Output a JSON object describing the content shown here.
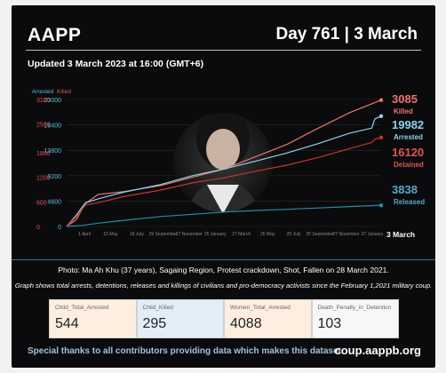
{
  "header": {
    "org": "AAPP",
    "day_date": "Day 761 | 3 March",
    "updated": "Updated 3 March 2023 at 16:00 (GMT+6)"
  },
  "chart_data": {
    "type": "line",
    "y_left": {
      "label": "Arrested",
      "ticks": [
        0,
        4600,
        9200,
        13800,
        18400,
        23000
      ],
      "range": [
        0,
        23000
      ],
      "color": "#5bc0de"
    },
    "y_right": {
      "label": "Killed",
      "ticks": [
        0,
        600,
        1200,
        1800,
        2500,
        3100
      ],
      "range": [
        0,
        3100
      ],
      "color": "#e05555"
    },
    "x_ticks": [
      "1 April",
      "15 May",
      "18 July",
      "29 September",
      "27 November",
      "26 January",
      "27 March",
      "26 May",
      "25 July",
      "25 September",
      "27 November",
      "27 January"
    ],
    "x_end_label": "3 March",
    "series": [
      {
        "name": "Killed",
        "axis": "right",
        "color": "#f07070",
        "final": "3085",
        "points": [
          [
            0,
            0
          ],
          [
            0.03,
            160
          ],
          [
            0.06,
            560
          ],
          [
            0.1,
            780
          ],
          [
            0.18,
            850
          ],
          [
            0.3,
            1000
          ],
          [
            0.4,
            1200
          ],
          [
            0.5,
            1400
          ],
          [
            0.6,
            1700
          ],
          [
            0.7,
            2000
          ],
          [
            0.8,
            2400
          ],
          [
            0.9,
            2780
          ],
          [
            1.0,
            3085
          ]
        ]
      },
      {
        "name": "Arrested",
        "axis": "left",
        "color": "#8fd3ee",
        "final": "19982",
        "points": [
          [
            0,
            0
          ],
          [
            0.03,
            2000
          ],
          [
            0.06,
            4300
          ],
          [
            0.1,
            5000
          ],
          [
            0.18,
            6200
          ],
          [
            0.3,
            7600
          ],
          [
            0.4,
            9200
          ],
          [
            0.5,
            10400
          ],
          [
            0.6,
            11800
          ],
          [
            0.7,
            13300
          ],
          [
            0.8,
            15000
          ],
          [
            0.9,
            16900
          ],
          [
            0.97,
            17800
          ],
          [
            0.98,
            19500
          ],
          [
            1.0,
            19982
          ]
        ]
      },
      {
        "name": "Detained",
        "axis": "left",
        "color": "#c0392b",
        "final": "16120",
        "points": [
          [
            0,
            0
          ],
          [
            0.03,
            1700
          ],
          [
            0.06,
            3900
          ],
          [
            0.1,
            4300
          ],
          [
            0.18,
            5400
          ],
          [
            0.3,
            6600
          ],
          [
            0.4,
            7900
          ],
          [
            0.5,
            8800
          ],
          [
            0.6,
            10000
          ],
          [
            0.7,
            11100
          ],
          [
            0.8,
            12500
          ],
          [
            0.9,
            14100
          ],
          [
            0.97,
            15200
          ],
          [
            0.98,
            15800
          ],
          [
            1.0,
            16120
          ]
        ]
      },
      {
        "name": "Released",
        "axis": "left",
        "color": "#2a8aa8",
        "final": "3838",
        "points": [
          [
            0,
            0
          ],
          [
            0.05,
            200
          ],
          [
            0.1,
            600
          ],
          [
            0.2,
            1200
          ],
          [
            0.3,
            1800
          ],
          [
            0.4,
            2200
          ],
          [
            0.5,
            2600
          ],
          [
            0.6,
            2900
          ],
          [
            0.7,
            3100
          ],
          [
            0.8,
            3350
          ],
          [
            0.9,
            3600
          ],
          [
            1.0,
            3838
          ]
        ]
      }
    ]
  },
  "footer": {
    "photo_caption": "Photo: Ma Ah Khu (37 years), Sagaing Region, Protest crackdown, Shot, Fallen on 28 March 2021.",
    "graph_caption": "Graph shows total arrests, detentions, releases and killings of civilians and pro-democracy activists since the February 1,2021 military coup.",
    "stats": [
      {
        "label": "Child_Total_Arrested",
        "value": "544"
      },
      {
        "label": "Child_Killed",
        "value": "295"
      },
      {
        "label": "Women_Total_Arrested",
        "value": "4088"
      },
      {
        "label": "Death_Penalty_in_Detention",
        "value": "103"
      }
    ],
    "thanks": "Special thanks to all contributors providing data which makes this dataset.",
    "url": "coup.aappb.org"
  }
}
